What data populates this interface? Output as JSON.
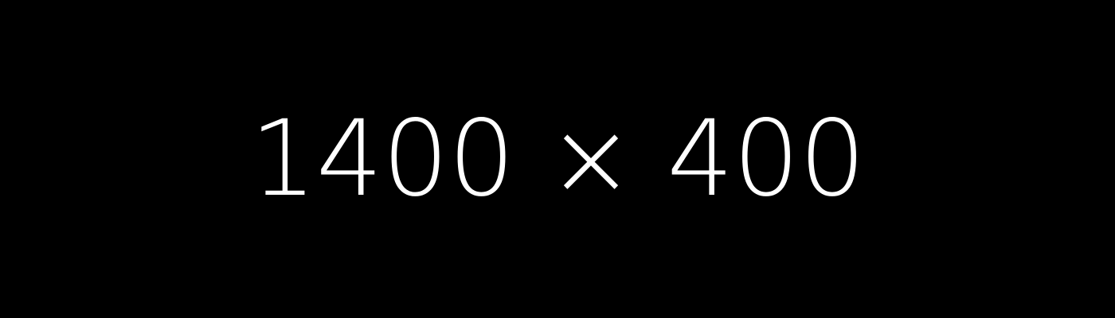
{
  "placeholder": {
    "label": "1400 × 400"
  },
  "colors": {
    "background": "#000000",
    "text": "#ffffff"
  }
}
